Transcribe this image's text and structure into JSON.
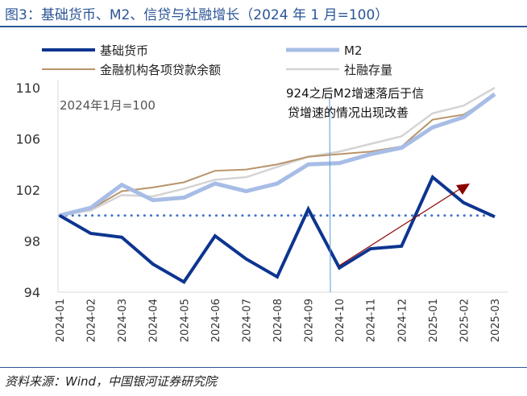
{
  "title": "图3：基础货币、M2、信贷与社融增长（2024 年 1 月=100）",
  "source": "资料来源：Wind，中国银河证券研究院",
  "chart_data": {
    "type": "line",
    "title": "图3：基础货币、M2、信贷与社融增长（2024 年 1 月=100）",
    "categories": [
      "2024-01",
      "2024-02",
      "2024-03",
      "2024-04",
      "2024-05",
      "2024-06",
      "2024-07",
      "2024-08",
      "2024-09",
      "2024-10",
      "2024-11",
      "2024-12",
      "2025-01",
      "2025-02",
      "2025-03"
    ],
    "ylim": [
      94,
      110
    ],
    "yticks": [
      94,
      98,
      102,
      106,
      110
    ],
    "grid": false,
    "legend": "top",
    "baseline": 100,
    "series": [
      {
        "name": "基础货币",
        "color": "#0d3590",
        "width": 4,
        "values": [
          100,
          98.6,
          98.3,
          96.2,
          94.8,
          98.4,
          96.6,
          95.2,
          100.5,
          95.9,
          97.4,
          97.6,
          103.0,
          101.0,
          99.9
        ]
      },
      {
        "name": "M2",
        "color": "#a7bde6",
        "width": 5,
        "values": [
          100,
          100.6,
          102.4,
          101.2,
          101.4,
          102.5,
          101.9,
          102.5,
          104.0,
          104.1,
          104.8,
          105.3,
          106.9,
          107.7,
          109.5
        ]
      },
      {
        "name": "金融机构各项贷款余额",
        "color": "#b8946a",
        "width": 2,
        "values": [
          100,
          100.5,
          101.9,
          102.2,
          102.6,
          103.5,
          103.6,
          104.0,
          104.6,
          104.8,
          105.0,
          105.4,
          107.5,
          107.9,
          109.4
        ]
      },
      {
        "name": "社融存量",
        "color": "#d4d4d4",
        "width": 2.5,
        "values": [
          100,
          100.4,
          101.6,
          101.5,
          102.1,
          102.8,
          103.0,
          103.8,
          104.6,
          105.0,
          105.6,
          106.2,
          108.0,
          108.6,
          110.0
        ]
      }
    ],
    "annotations": {
      "base_note": "2024年1月=100",
      "callout_line1": "924之后M2增速落后于信",
      "callout_line2": "贷增速的情况出现改善",
      "arrow_color": "#8b0000"
    }
  }
}
